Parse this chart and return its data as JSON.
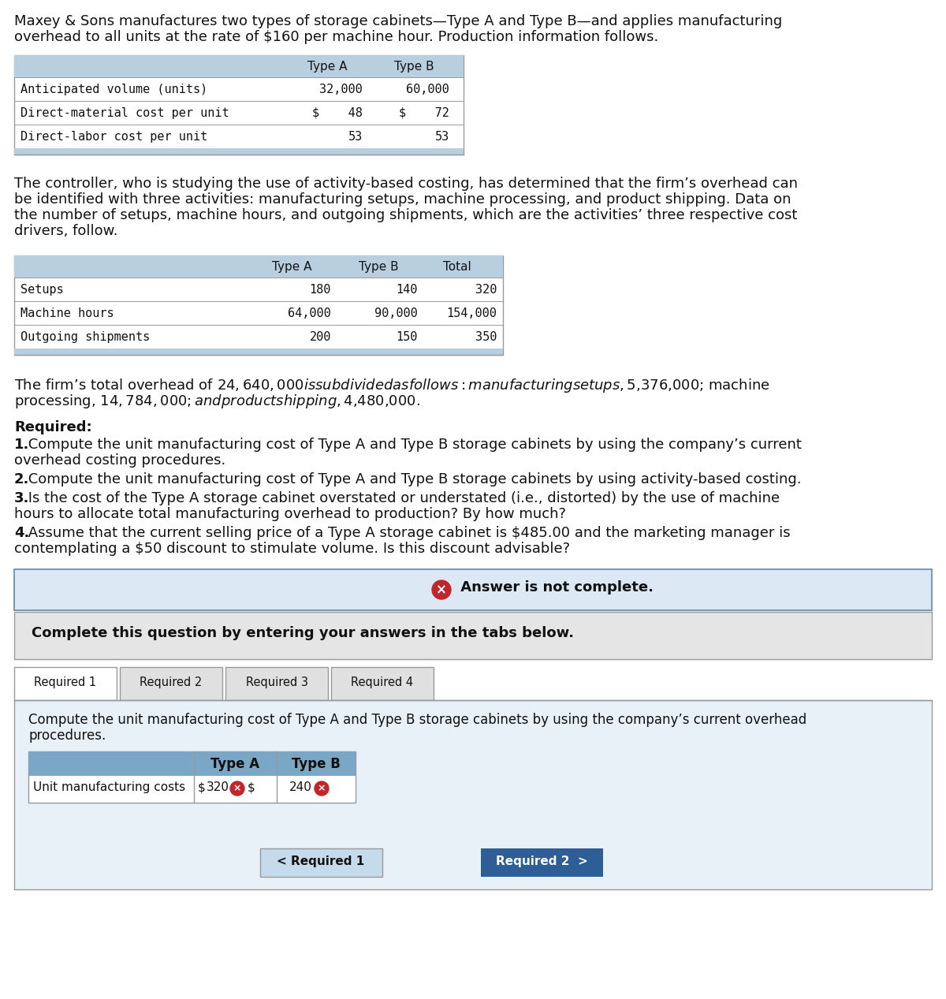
{
  "title_line1": "Maxey & Sons manufactures two types of storage cabinets—Type A and Type B—and applies manufacturing",
  "title_line2": "overhead to all units at the rate of $160 per machine hour. Production information follows.",
  "table1_col_labels": [
    "Type A",
    "Type B"
  ],
  "table1_rows": [
    [
      "Anticipated volume (units)",
      "32,000",
      "60,000"
    ],
    [
      "Direct-material cost per unit",
      "$    48",
      "$    72"
    ],
    [
      "Direct-labor cost per unit",
      "53",
      "53"
    ]
  ],
  "para2_lines": [
    "The controller, who is studying the use of activity-based costing, has determined that the firm’s overhead can",
    "be identified with three activities: manufacturing setups, machine processing, and product shipping. Data on",
    "the number of setups, machine hours, and outgoing shipments, which are the activities’ three respective cost",
    "drivers, follow."
  ],
  "table2_col_labels": [
    "Type A",
    "Type B",
    "Total"
  ],
  "table2_rows": [
    [
      "Setups",
      "180",
      "140",
      "320"
    ],
    [
      "Machine hours",
      "64,000",
      "90,000",
      "154,000"
    ],
    [
      "Outgoing shipments",
      "200",
      "150",
      "350"
    ]
  ],
  "para3_line1": "The firm’s total overhead of $24,640,000 is subdivided as follows: manufacturing setups, $5,376,000; machine",
  "para3_line2": "processing, $14,784,000; and product shipping, $4,480,000.",
  "required_label": "Required:",
  "req1_bold": "1.",
  "req1_text": " Compute the unit manufacturing cost of Type A and Type B storage cabinets by using the company’s current",
  "req1_cont": "overhead costing procedures.",
  "req2_bold": "2.",
  "req2_text": " Compute the unit manufacturing cost of Type A and Type B storage cabinets by using activity-based costing.",
  "req3_bold": "3.",
  "req3_text": " Is the cost of the Type A storage cabinet overstated or understated (i.e., distorted) by the use of machine",
  "req3_cont": "hours to allocate total manufacturing overhead to production? By how much?",
  "req4_bold": "4.",
  "req4_text": " Assume that the current selling price of a Type A storage cabinet is $485.00 and the marketing manager is",
  "req4_cont": "contemplating a $50 discount to stimulate volume. Is this discount advisable?",
  "answer_text": " Answer is not complete.",
  "complete_text": "Complete this question by entering your answers in the tabs below.",
  "tabs": [
    "Required 1",
    "Required 2",
    "Required 3",
    "Required 4"
  ],
  "tab_instr_line1": "Compute the unit manufacturing cost of Type A and Type B storage cabinets by using the company’s current overhea⁠d",
  "tab_instr_line2": "procedures.",
  "result_row_label": "Unit manufacturing costs",
  "result_typeA_val": "320",
  "result_typeB_val": "240",
  "nav_back": "< Required 1",
  "nav_fwd": "Required 2  >",
  "bg_white": "#ffffff",
  "bg_light_blue": "#dce9f5",
  "bg_gray": "#e5e5e5",
  "bg_tab_header": "#b8cfe0",
  "bg_tab_content": "#e8f0f8",
  "border_col": "#999999",
  "border_dark": "#7a9ab5",
  "text_col": "#111111",
  "error_red": "#c0272d",
  "nav_back_bg": "#c5daea",
  "nav_fwd_bg": "#2d5f96",
  "nav_fwd_text": "#ffffff",
  "mono_font": "DejaVu Sans Mono",
  "sans_font": "DejaVu Sans"
}
